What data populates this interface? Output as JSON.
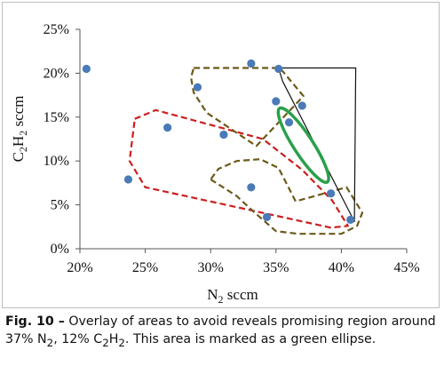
{
  "chart_data": {
    "type": "scatter",
    "xlabel": {
      "main": "N",
      "sub": "2",
      "rest": " sccm"
    },
    "ylabel": {
      "a": "C",
      "a_sub": "2",
      "b": "H",
      "b_sub": "2",
      "rest": " sccm"
    },
    "x_ticks": [
      "20%",
      "25%",
      "30%",
      "35%",
      "40%",
      "45%"
    ],
    "y_ticks": [
      "0%",
      "5%",
      "10%",
      "15%",
      "20%",
      "25%"
    ],
    "xlim": [
      0.2,
      0.45
    ],
    "ylim": [
      0,
      0.25
    ],
    "grid": false,
    "series": [
      {
        "marker_color": "#4a7ab8",
        "points": [
          [
            0.205,
            0.205
          ],
          [
            0.237,
            0.079
          ],
          [
            0.267,
            0.138
          ],
          [
            0.29,
            0.184
          ],
          [
            0.31,
            0.13
          ],
          [
            0.331,
            0.211
          ],
          [
            0.331,
            0.07
          ],
          [
            0.343,
            0.036
          ],
          [
            0.35,
            0.168
          ],
          [
            0.352,
            0.205
          ],
          [
            0.36,
            0.144
          ],
          [
            0.37,
            0.163
          ],
          [
            0.392,
            0.063
          ],
          [
            0.407,
            0.033
          ]
        ]
      }
    ],
    "regions": [
      {
        "id": "red-dashed",
        "color": "#cc1f1f",
        "style": "dashed",
        "polygon": [
          [
            0.242,
            0.148
          ],
          [
            0.258,
            0.158
          ],
          [
            0.34,
            0.125
          ],
          [
            0.37,
            0.09
          ],
          [
            0.393,
            0.055
          ],
          [
            0.405,
            0.026
          ],
          [
            0.392,
            0.024
          ],
          [
            0.25,
            0.07
          ],
          [
            0.238,
            0.1
          ]
        ]
      },
      {
        "id": "olive-dashed-upper",
        "color": "#6b5a1a",
        "style": "dashed",
        "polygon": [
          [
            0.287,
            0.206
          ],
          [
            0.353,
            0.206
          ],
          [
            0.371,
            0.174
          ],
          [
            0.335,
            0.117
          ],
          [
            0.297,
            0.155
          ],
          [
            0.287,
            0.178
          ],
          [
            0.285,
            0.195
          ]
        ]
      },
      {
        "id": "olive-dashed-lower",
        "color": "#6b5a1a",
        "style": "dashed",
        "polygon": [
          [
            0.3,
            0.079
          ],
          [
            0.32,
            0.06
          ],
          [
            0.333,
            0.042
          ],
          [
            0.35,
            0.02
          ],
          [
            0.367,
            0.017
          ],
          [
            0.4,
            0.017
          ],
          [
            0.412,
            0.026
          ],
          [
            0.416,
            0.041
          ],
          [
            0.404,
            0.07
          ],
          [
            0.365,
            0.054
          ],
          [
            0.352,
            0.092
          ],
          [
            0.338,
            0.102
          ],
          [
            0.32,
            0.1
          ],
          [
            0.306,
            0.091
          ]
        ]
      },
      {
        "id": "black-solid",
        "color": "#111111",
        "style": "solid",
        "polygon": [
          [
            0.352,
            0.206
          ],
          [
            0.411,
            0.206
          ],
          [
            0.41,
            0.031
          ],
          [
            0.355,
            0.191
          ]
        ]
      }
    ],
    "highlight_ellipse": {
      "color": "#2aa04a",
      "center": [
        0.371,
        0.118
      ],
      "semi_major": 0.05,
      "semi_minor": 0.011,
      "rotation_deg": 57
    }
  },
  "caption": {
    "label": "Fig. 10 –",
    "text_1": " Overlay of areas to avoid reveals promising region around 37% N",
    "sub_1": "2",
    "text_2": ", 12% C",
    "sub_2": "2",
    "text_3": "H",
    "sub_3": "2",
    "text_4": ". This area is marked as a green ellipse."
  }
}
